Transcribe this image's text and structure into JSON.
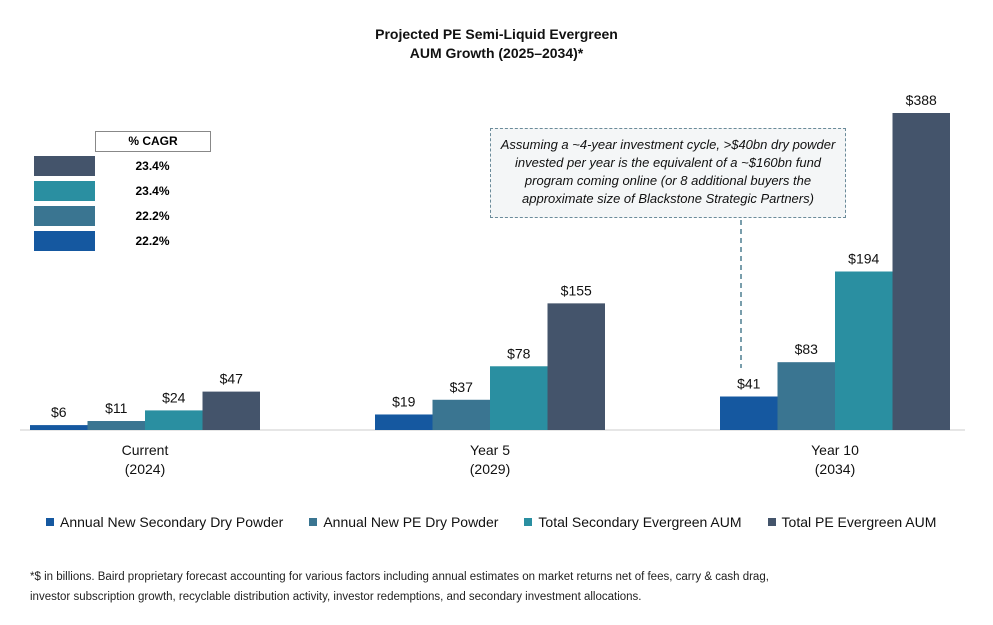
{
  "chart_data": {
    "type": "bar",
    "title_line1": "Projected PE Semi-Liquid Evergreen",
    "title_line2": "AUM Growth (2025–2034)*",
    "categories": [
      {
        "line1": "Current",
        "line2": "(2024)"
      },
      {
        "line1": "Year 5",
        "line2": "(2029)"
      },
      {
        "line1": "Year 10",
        "line2": "(2034)"
      }
    ],
    "series": [
      {
        "name": "Annual New Secondary Dry Powder",
        "color": "#1558a0",
        "values": [
          6,
          19,
          41
        ],
        "labels": [
          "$6",
          "$19",
          "$41"
        ],
        "cagr": "22.2%"
      },
      {
        "name": "Annual New PE Dry Powder",
        "color": "#3a7591",
        "values": [
          11,
          37,
          83
        ],
        "labels": [
          "$11",
          "$37",
          "$83"
        ],
        "cagr": "22.2%"
      },
      {
        "name": "Total Secondary Evergreen AUM",
        "color": "#2a8fa1",
        "values": [
          24,
          78,
          194
        ],
        "labels": [
          "$24",
          "$78",
          "$194"
        ],
        "cagr": "23.4%"
      },
      {
        "name": "Total PE Evergreen AUM",
        "color": "#44546b",
        "values": [
          47,
          155,
          388
        ],
        "labels": [
          "$47",
          "$155",
          "$388"
        ],
        "cagr": "23.4%"
      }
    ],
    "ylim": [
      0,
      400
    ],
    "legend_position": "bottom",
    "cagr_header": "% CAGR",
    "annotation": "Assuming a ~4-year investment cycle, >$40bn dry powder invested per year is the equivalent of a ~$160bn fund program coming online (or 8 additional buyers the approximate size of Blackstone Strategic Partners)",
    "footnote_line1": "*$ in billions. Baird proprietary forecast accounting for various factors including annual estimates on market returns net of fees, carry & cash drag,",
    "footnote_line2": "investor subscription growth, recyclable distribution activity, investor redemptions, and secondary investment allocations."
  }
}
